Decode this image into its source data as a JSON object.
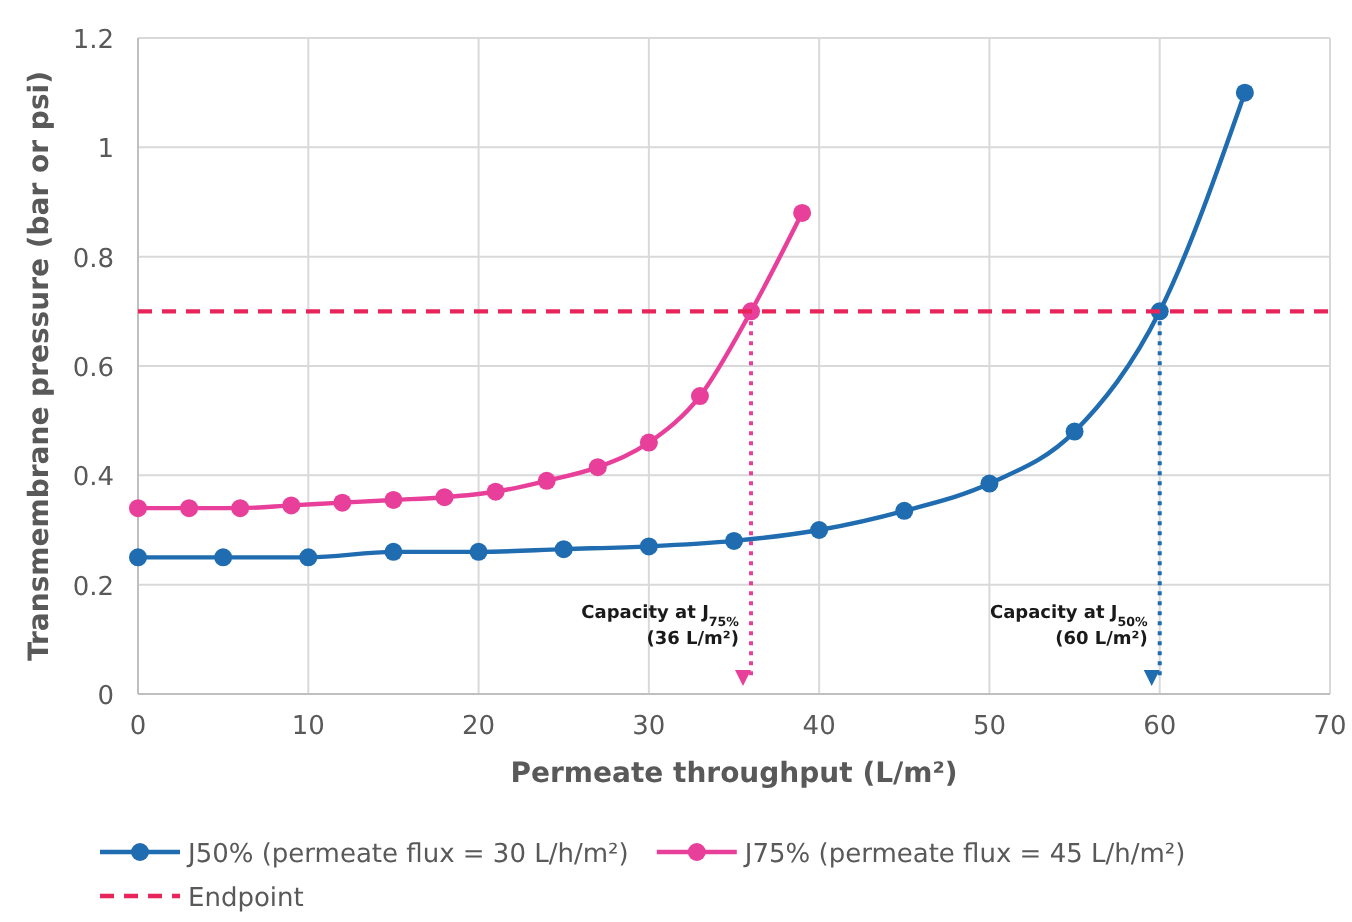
{
  "chart_data": {
    "type": "line",
    "xlabel": "Permeate throughput (L/m²)",
    "ylabel": "Transmembrane pressure (bar or psi)",
    "xlim": [
      0,
      70
    ],
    "xticks": [
      0,
      10,
      20,
      30,
      40,
      50,
      60,
      70
    ],
    "ylim": [
      0,
      1.2
    ],
    "yticks": [
      0,
      0.2,
      0.4,
      0.6,
      0.8,
      1,
      1.2
    ],
    "grid": true,
    "legend": "bottom",
    "marker": "circle",
    "line_style": "solid",
    "series": [
      {
        "name": "J50% (permeate flux = 30 L/h/m²)",
        "color": "#1f6cb0",
        "x": [
          0,
          5,
          10,
          15,
          20,
          25,
          30,
          35,
          40,
          45,
          50,
          55,
          60,
          65
        ],
        "values": [
          0.25,
          0.25,
          0.25,
          0.26,
          0.26,
          0.265,
          0.27,
          0.28,
          0.3,
          0.335,
          0.385,
          0.48,
          0.7,
          1.1
        ]
      },
      {
        "name": "J75% (permeate flux = 45 L/h/m²)",
        "color": "#e8409a",
        "x": [
          0,
          3,
          6,
          9,
          12,
          15,
          18,
          21,
          24,
          27,
          30,
          33,
          36,
          39
        ],
        "values": [
          0.34,
          0.34,
          0.34,
          0.345,
          0.35,
          0.355,
          0.36,
          0.37,
          0.39,
          0.415,
          0.46,
          0.545,
          0.7,
          0.88
        ]
      },
      {
        "name": "Endpoint",
        "color": "#e8245a",
        "type": "line",
        "marker": "none",
        "line_style": "dashed",
        "x": [
          0,
          70
        ],
        "values": [
          0.7,
          0.7
        ]
      }
    ],
    "ref_lines": [
      {
        "axis": "x",
        "value": 36,
        "label": "Capacity at J$_{75%}$\n(36 L/m²)",
        "color": "#e8409a",
        "line_style": "dotted"
      },
      {
        "axis": "x",
        "value": 60,
        "label": "Capacity at J$_{50%}$\n(60 L/m²)",
        "color": "#1f6cb0",
        "line_style": "dotted"
      }
    ]
  }
}
